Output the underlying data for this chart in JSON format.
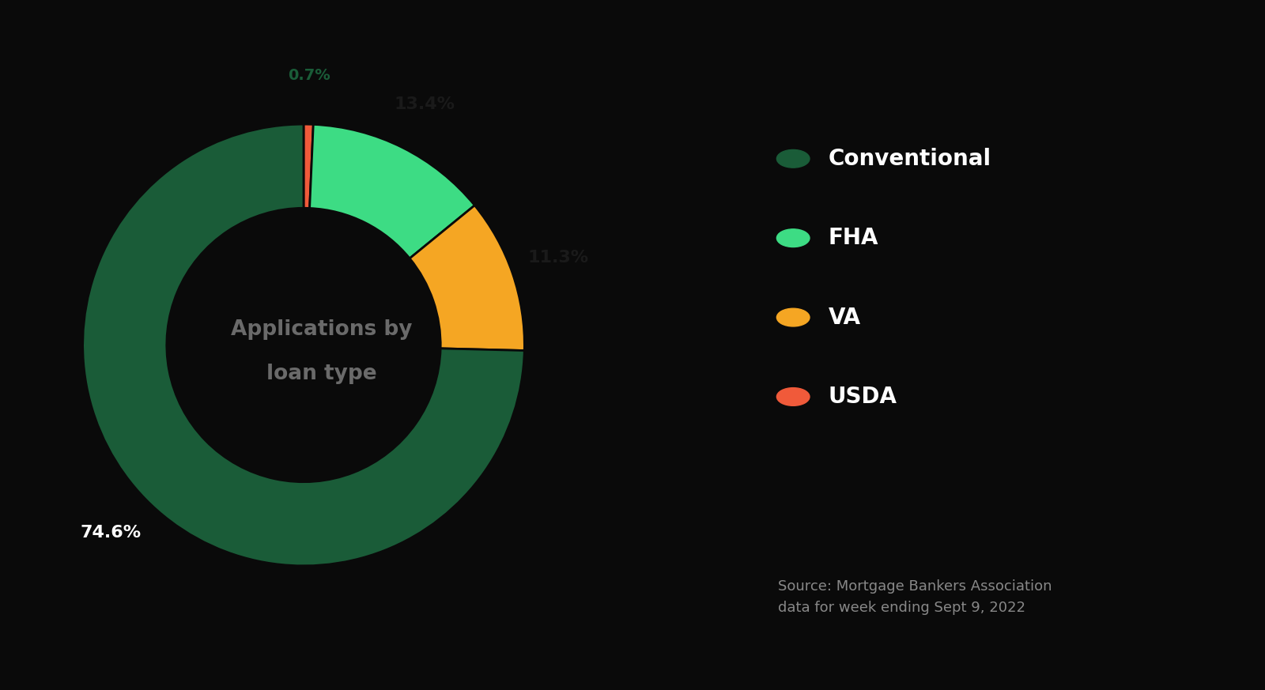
{
  "slices": [
    74.6,
    13.4,
    11.3,
    0.7
  ],
  "labels": [
    "Conventional",
    "FHA",
    "VA",
    "USDA"
  ],
  "colors": [
    "#1a5c38",
    "#3ddc84",
    "#f5a623",
    "#f05a3a"
  ],
  "pct_labels": [
    "74.6%",
    "13.4%",
    "11.3%",
    "0.7%"
  ],
  "center_text_line1": "Applications by",
  "center_text_line2": "loan type",
  "source_text": "Source: Mortgage Bankers Association\ndata for week ending Sept 9, 2022",
  "background_color": "#0a0a0a",
  "text_color_white": "#ffffff",
  "text_color_gray": "#888888",
  "legend_colors": [
    "#1a5c38",
    "#3ddc84",
    "#f5a623",
    "#f05a3a"
  ],
  "donut_width": 0.38,
  "pct_label_colors": [
    "#ffffff",
    "#1a1a1a",
    "#1a1a1a",
    "#1a5c38"
  ]
}
